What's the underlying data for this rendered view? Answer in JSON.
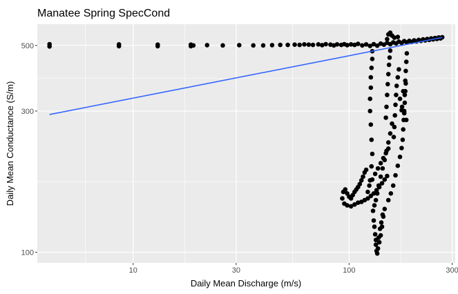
{
  "chart_data": {
    "type": "scatter",
    "title": "Manatee Spring SpecCond",
    "xlabel": "Daily Mean Discharge (m/s)",
    "ylabel": "Daily Mean Conductance (S/m)",
    "x_scale": "log10",
    "y_scale": "log10",
    "xlim": [
      3.6,
      310
    ],
    "ylim": [
      92,
      590
    ],
    "x_ticks": [
      10,
      30,
      100,
      300
    ],
    "x_tick_labels": [
      "10",
      "30",
      "100",
      "300"
    ],
    "y_ticks": [
      100,
      300,
      500
    ],
    "y_tick_labels": [
      "100",
      "300",
      "500"
    ],
    "grid": true,
    "legend": "none",
    "colors": {
      "panel": "#ebebeb",
      "grid": "#ffffff",
      "points": "#000000",
      "fit_line": "#3366ff"
    },
    "fit_line": {
      "x": [
        4.1,
        270
      ],
      "y": [
        292,
        532
      ]
    },
    "series": [
      {
        "points": [
          [
            4.1,
            505
          ],
          [
            4.1,
            496
          ],
          [
            8.6,
            504
          ],
          [
            8.6,
            497
          ],
          [
            13,
            503
          ],
          [
            13,
            497
          ],
          [
            18.5,
            503
          ],
          [
            18.5,
            497
          ],
          [
            19,
            500
          ],
          [
            22,
            501
          ],
          [
            26,
            500
          ],
          [
            31,
            501
          ],
          [
            36,
            500
          ],
          [
            40,
            500
          ],
          [
            44,
            501
          ],
          [
            48,
            502
          ],
          [
            52,
            502
          ],
          [
            56,
            503
          ],
          [
            59,
            502
          ],
          [
            62,
            504
          ],
          [
            65,
            503
          ],
          [
            68,
            502
          ],
          [
            72,
            504
          ],
          [
            75,
            501
          ],
          [
            78,
            505
          ],
          [
            82,
            503
          ],
          [
            85,
            500
          ],
          [
            88,
            504
          ],
          [
            92,
            502
          ],
          [
            95,
            505
          ],
          [
            98,
            501
          ],
          [
            102,
            504
          ],
          [
            106,
            502
          ],
          [
            110,
            506
          ],
          [
            115,
            500
          ],
          [
            120,
            504
          ],
          [
            125,
            498
          ],
          [
            130,
            505
          ],
          [
            135,
            499
          ],
          [
            140,
            507
          ],
          [
            145,
            503
          ],
          [
            150,
            510
          ],
          [
            155,
            505
          ],
          [
            160,
            512
          ],
          [
            165,
            508
          ],
          [
            170,
            515
          ],
          [
            175,
            510
          ],
          [
            180,
            517
          ],
          [
            185,
            512
          ],
          [
            190,
            518
          ],
          [
            195,
            514
          ],
          [
            200,
            520
          ],
          [
            205,
            516
          ],
          [
            210,
            522
          ],
          [
            215,
            518
          ],
          [
            220,
            524
          ],
          [
            225,
            520
          ],
          [
            230,
            526
          ],
          [
            235,
            522
          ],
          [
            240,
            528
          ],
          [
            245,
            524
          ],
          [
            250,
            530
          ],
          [
            255,
            526
          ],
          [
            260,
            532
          ],
          [
            265,
            528
          ],
          [
            270,
            533
          ],
          [
            150,
            525
          ],
          [
            152,
            545
          ],
          [
            155,
            552
          ],
          [
            158,
            540
          ],
          [
            162,
            531
          ],
          [
            168,
            534
          ],
          [
            128,
            478
          ],
          [
            128,
            450
          ],
          [
            127,
            420
          ],
          [
            126,
            390
          ],
          [
            126,
            360
          ],
          [
            125,
            330
          ],
          [
            125,
            300
          ],
          [
            126,
            270
          ],
          [
            127,
            240
          ],
          [
            128,
            215
          ],
          [
            127,
            195
          ],
          [
            125,
            175
          ],
          [
            122,
            160
          ],
          [
            185,
            470
          ],
          [
            184,
            440
          ],
          [
            183,
            410
          ],
          [
            182,
            380
          ],
          [
            182,
            350
          ],
          [
            181,
            320
          ],
          [
            180,
            300
          ],
          [
            179,
            280
          ],
          [
            178,
            260
          ],
          [
            177,
            240
          ],
          [
            175,
            225
          ],
          [
            172,
            210
          ],
          [
            168,
            196
          ],
          [
            164,
            182
          ],
          [
            160,
            168
          ],
          [
            156,
            158
          ],
          [
            152,
            150
          ],
          [
            170,
            415
          ],
          [
            168,
            390
          ],
          [
            166,
            365
          ],
          [
            165,
            340
          ],
          [
            164,
            315
          ],
          [
            163,
            290
          ],
          [
            162,
            265
          ],
          [
            161,
            245
          ],
          [
            155,
            480
          ],
          [
            154,
            455
          ],
          [
            153,
            430
          ],
          [
            152,
            400
          ],
          [
            151,
            370
          ],
          [
            150,
            340
          ],
          [
            149,
            310
          ],
          [
            148,
            285
          ],
          [
            172,
            330
          ],
          [
            176,
            310
          ],
          [
            180,
            295
          ],
          [
            184,
            280
          ],
          [
            178,
            350
          ],
          [
            183,
            372
          ],
          [
            175,
            302
          ],
          [
            181,
            340
          ],
          [
            158,
            272
          ],
          [
            155,
            252
          ],
          [
            152,
            235
          ],
          [
            149,
            220
          ],
          [
            146,
            205
          ],
          [
            143,
            192
          ],
          [
            140,
            180
          ],
          [
            137,
            168
          ],
          [
            135,
            158
          ],
          [
            133,
            150
          ],
          [
            131,
            144
          ],
          [
            129,
            138
          ],
          [
            130,
            128
          ],
          [
            131,
            122
          ],
          [
            132,
            115
          ],
          [
            133,
            110
          ],
          [
            133,
            106
          ],
          [
            134,
            101
          ],
          [
            135,
            99
          ],
          [
            136,
            103
          ],
          [
            138,
            108
          ],
          [
            140,
            114
          ],
          [
            142,
            122
          ],
          [
            144,
            132
          ],
          [
            146,
            140
          ],
          [
            143,
            134
          ],
          [
            141,
            126
          ],
          [
            139,
            120
          ],
          [
            137,
            112
          ],
          [
            93,
            152
          ],
          [
            94,
            160
          ],
          [
            96,
            163
          ],
          [
            98,
            158
          ],
          [
            100,
            154
          ],
          [
            102,
            152
          ],
          [
            104,
            156
          ],
          [
            106,
            160
          ],
          [
            108,
            163
          ],
          [
            110,
            166
          ],
          [
            112,
            170
          ],
          [
            114,
            175
          ],
          [
            116,
            180
          ],
          [
            118,
            186
          ],
          [
            120,
            190
          ],
          [
            95,
            146
          ],
          [
            98,
            144
          ],
          [
            102,
            143
          ],
          [
            106,
            145
          ],
          [
            110,
            147
          ],
          [
            114,
            148
          ],
          [
            118,
            150
          ],
          [
            122,
            152
          ],
          [
            126,
            155
          ],
          [
            130,
            158
          ],
          [
            134,
            162
          ],
          [
            138,
            166
          ],
          [
            142,
            171
          ],
          [
            146,
            176
          ],
          [
            150,
            181
          ],
          [
            124,
            168
          ],
          [
            128,
            176
          ],
          [
            132,
            184
          ],
          [
            136,
            192
          ],
          [
            140,
            200
          ],
          [
            144,
            208
          ],
          [
            148,
            216
          ],
          [
            152,
            224
          ]
        ]
      }
    ]
  }
}
